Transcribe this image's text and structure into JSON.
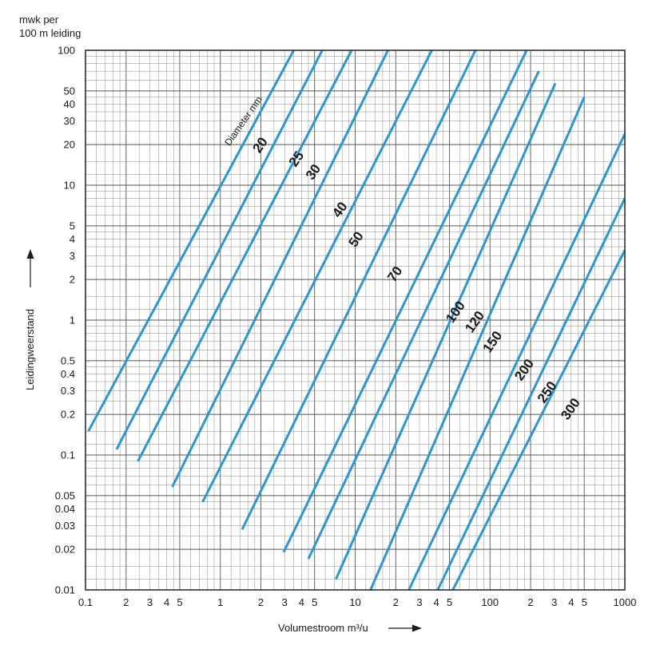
{
  "chart_data": {
    "type": "line",
    "title": "",
    "y_title": [
      "mwk per",
      "100 m leiding"
    ],
    "ylabel": "Leidingweerstand",
    "xlabel": "Volumestroom m³/u",
    "x_scale": "log",
    "y_scale": "log",
    "xlim": [
      0.1,
      1000
    ],
    "ylim": [
      0.01,
      100
    ],
    "grid": true,
    "x_tick_labels": [
      {
        "v": 0.1,
        "t": "0.1"
      },
      {
        "v": 0.2,
        "t": "2"
      },
      {
        "v": 0.3,
        "t": "3"
      },
      {
        "v": 0.4,
        "t": "4"
      },
      {
        "v": 0.5,
        "t": "5"
      },
      {
        "v": 1,
        "t": "1"
      },
      {
        "v": 2,
        "t": "2"
      },
      {
        "v": 3,
        "t": "3"
      },
      {
        "v": 4,
        "t": "4"
      },
      {
        "v": 5,
        "t": "5"
      },
      {
        "v": 10,
        "t": "10"
      },
      {
        "v": 20,
        "t": "2"
      },
      {
        "v": 30,
        "t": "3"
      },
      {
        "v": 40,
        "t": "4"
      },
      {
        "v": 50,
        "t": "5"
      },
      {
        "v": 100,
        "t": "100"
      },
      {
        "v": 200,
        "t": "2"
      },
      {
        "v": 300,
        "t": "3"
      },
      {
        "v": 400,
        "t": "4"
      },
      {
        "v": 500,
        "t": "5"
      },
      {
        "v": 1000,
        "t": "1000"
      }
    ],
    "y_tick_labels": [
      {
        "v": 100,
        "t": "100"
      },
      {
        "v": 50,
        "t": "50"
      },
      {
        "v": 40,
        "t": "40"
      },
      {
        "v": 30,
        "t": "30"
      },
      {
        "v": 20,
        "t": "20"
      },
      {
        "v": 10,
        "t": "10"
      },
      {
        "v": 5,
        "t": "5"
      },
      {
        "v": 4,
        "t": "4"
      },
      {
        "v": 3,
        "t": "3"
      },
      {
        "v": 2,
        "t": "2"
      },
      {
        "v": 1,
        "t": "1"
      },
      {
        "v": 0.5,
        "t": "0.5"
      },
      {
        "v": 0.4,
        "t": "0.4"
      },
      {
        "v": 0.3,
        "t": "0.3"
      },
      {
        "v": 0.2,
        "t": "0.2"
      },
      {
        "v": 0.1,
        "t": "0.1"
      },
      {
        "v": 0.05,
        "t": "0.05"
      },
      {
        "v": 0.04,
        "t": "0.04"
      },
      {
        "v": 0.03,
        "t": "0.03"
      },
      {
        "v": 0.02,
        "t": "0.02"
      },
      {
        "v": 0.01,
        "t": "0.01"
      }
    ],
    "annotation": "Diameter mm",
    "line_color": "#2e95cf",
    "series": [
      {
        "name": "20",
        "x": [
          0.105,
          3.5
        ],
        "y": [
          0.15,
          100
        ]
      },
      {
        "name": "25",
        "x": [
          0.17,
          5.7
        ],
        "y": [
          0.11,
          100
        ]
      },
      {
        "name": "30",
        "x": [
          0.245,
          9.4
        ],
        "y": [
          0.09,
          100
        ]
      },
      {
        "name": "40",
        "x": [
          0.44,
          17.5
        ],
        "y": [
          0.058,
          100
        ]
      },
      {
        "name": "50",
        "x": [
          0.74,
          37
        ],
        "y": [
          0.045,
          100
        ]
      },
      {
        "name": "70",
        "x": [
          1.45,
          78
        ],
        "y": [
          0.028,
          100
        ]
      },
      {
        "name": "100",
        "x": [
          2.95,
          187
        ],
        "y": [
          0.019,
          100
        ]
      },
      {
        "name": "120",
        "x": [
          4.5,
          230
        ],
        "y": [
          0.017,
          70
        ]
      },
      {
        "name": "150",
        "x": [
          7.2,
          305
        ],
        "y": [
          0.012,
          57
        ]
      },
      {
        "name": "200",
        "x": [
          13,
          500
        ],
        "y": [
          0.01,
          45
        ]
      },
      {
        "name": "250",
        "x": [
          25,
          1000
        ],
        "y": [
          0.01,
          24
        ]
      },
      {
        "name": "300",
        "x": [
          41,
          1000
        ],
        "y": [
          0.01,
          8
        ]
      },
      {
        "name": "",
        "x": [
          53,
          1000
        ],
        "y": [
          0.01,
          3.3
        ]
      }
    ],
    "diameter_labels": [
      "20",
      "25",
      "30",
      "40",
      "50",
      "70",
      "100",
      "120",
      "150",
      "200",
      "250",
      "300"
    ],
    "diameter_label_positions": [
      {
        "x": 2.1,
        "y": 19
      },
      {
        "x": 3.9,
        "y": 15
      },
      {
        "x": 5.2,
        "y": 12
      },
      {
        "x": 8.2,
        "y": 6.3
      },
      {
        "x": 10.8,
        "y": 3.8
      },
      {
        "x": 21,
        "y": 2.1
      },
      {
        "x": 59,
        "y": 1.1
      },
      {
        "x": 82,
        "y": 0.93
      },
      {
        "x": 111,
        "y": 0.66
      },
      {
        "x": 191,
        "y": 0.41
      },
      {
        "x": 282,
        "y": 0.28
      },
      {
        "x": 421,
        "y": 0.21
      }
    ]
  }
}
